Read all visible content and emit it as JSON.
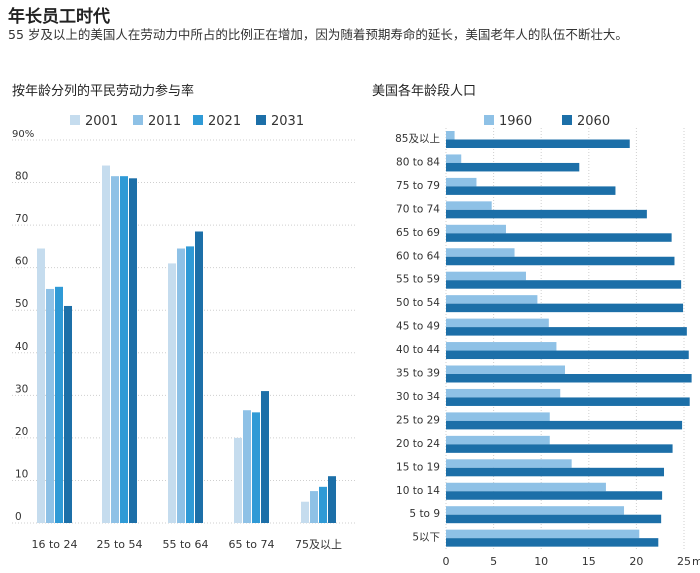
{
  "page": {
    "title": "年长员工时代",
    "subtitle": "55 岁及以上的美国人在劳动力中所占的比例正在增加，因为随着预期寿命的延长，美国老年人的队伍不断壮大。"
  },
  "colors": {
    "c2001": "#c5dcee",
    "c2011": "#8ec1e6",
    "c2021": "#2f9ad6",
    "c2031": "#1c6fa8",
    "c1960": "#8ec1e6",
    "c2060": "#1c6fa8",
    "grid": "#cfcfcf"
  },
  "chart_data": [
    {
      "type": "bar",
      "title": "按年龄分列的平民劳动力参与率",
      "categories": [
        "16 to 24",
        "25 to 54",
        "55 to 64",
        "65 to 74",
        "75及以上"
      ],
      "series": [
        {
          "name": "2001",
          "values": [
            64.5,
            84,
            61,
            20,
            5
          ]
        },
        {
          "name": "2011",
          "values": [
            55,
            81.5,
            64.5,
            26.5,
            7.5
          ]
        },
        {
          "name": "2021",
          "values": [
            55.5,
            81.5,
            65,
            26,
            8.5
          ]
        },
        {
          "name": "2031",
          "values": [
            51,
            81,
            68.5,
            31,
            11
          ]
        }
      ],
      "ylim": [
        0,
        90
      ],
      "yticks": [
        0,
        10,
        20,
        30,
        40,
        50,
        60,
        70,
        80
      ],
      "ytick_top_label": "90%",
      "legend_position": "top"
    },
    {
      "type": "bar",
      "orientation": "horizontal",
      "title": "美国各年龄段人口",
      "categories": [
        "85及以上",
        "80 to 84",
        "75 to 79",
        "70 to 74",
        "65 to 69",
        "60 to 64",
        "55 to 59",
        "50 to 54",
        "45 to 49",
        "40 to 44",
        "35 to 39",
        "30 to 34",
        "25 to 29",
        "20 to 24",
        "15 to 19",
        "10 to 14",
        "5 to 9",
        "5以下"
      ],
      "series": [
        {
          "name": "1960",
          "values": [
            0.9,
            1.6,
            3.2,
            4.8,
            6.3,
            7.2,
            8.4,
            9.6,
            10.8,
            11.6,
            12.5,
            12.0,
            10.9,
            10.9,
            13.2,
            16.8,
            18.7,
            20.3
          ]
        },
        {
          "name": "2060",
          "values": [
            19.3,
            14.0,
            17.8,
            21.1,
            23.7,
            24.0,
            24.7,
            24.9,
            25.3,
            25.5,
            25.8,
            25.6,
            24.8,
            23.8,
            22.9,
            22.7,
            22.6,
            22.3
          ]
        }
      ],
      "xlim": [
        0,
        25
      ],
      "xticks": [
        0,
        5,
        10,
        15,
        20,
        25
      ],
      "xtick_unit": "mil.",
      "legend_position": "top"
    }
  ]
}
